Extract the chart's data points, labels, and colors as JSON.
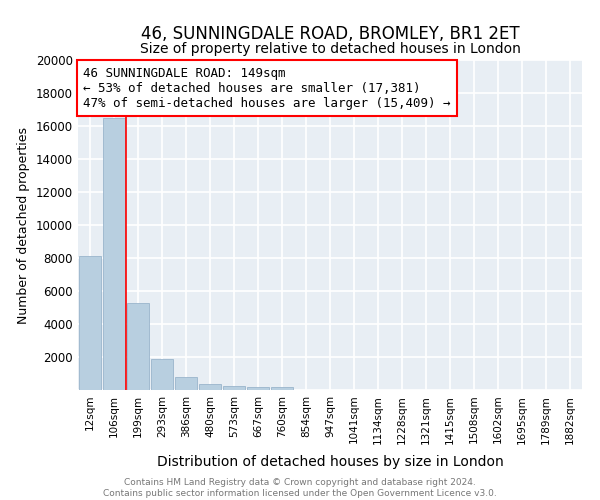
{
  "title1": "46, SUNNINGDALE ROAD, BROMLEY, BR1 2ET",
  "title2": "Size of property relative to detached houses in London",
  "xlabel": "Distribution of detached houses by size in London",
  "ylabel": "Number of detached properties",
  "footer1": "Contains HM Land Registry data © Crown copyright and database right 2024.",
  "footer2": "Contains public sector information licensed under the Open Government Licence v3.0.",
  "annotation_line1": "46 SUNNINGDALE ROAD: 149sqm",
  "annotation_line2": "← 53% of detached houses are smaller (17,381)",
  "annotation_line3": "47% of semi-detached houses are larger (15,409) →",
  "bar_labels": [
    "12sqm",
    "106sqm",
    "199sqm",
    "293sqm",
    "386sqm",
    "480sqm",
    "573sqm",
    "667sqm",
    "760sqm",
    "854sqm",
    "947sqm",
    "1041sqm",
    "1134sqm",
    "1228sqm",
    "1321sqm",
    "1415sqm",
    "1508sqm",
    "1602sqm",
    "1695sqm",
    "1789sqm",
    "1882sqm"
  ],
  "bar_values": [
    8100,
    16500,
    5300,
    1850,
    760,
    340,
    255,
    200,
    200,
    0,
    0,
    0,
    0,
    0,
    0,
    0,
    0,
    0,
    0,
    0,
    0
  ],
  "bar_color": "#b8cfe0",
  "bar_edge_color": "#9ab5cc",
  "red_line_x": 1.5,
  "ylim": [
    0,
    20000
  ],
  "yticks": [
    0,
    2000,
    4000,
    6000,
    8000,
    10000,
    12000,
    14000,
    16000,
    18000,
    20000
  ],
  "bg_color": "#e8eef4",
  "grid_color": "#ffffff",
  "title1_fontsize": 12,
  "title2_fontsize": 10,
  "xlabel_fontsize": 10,
  "ylabel_fontsize": 9,
  "annotation_fontsize": 9
}
